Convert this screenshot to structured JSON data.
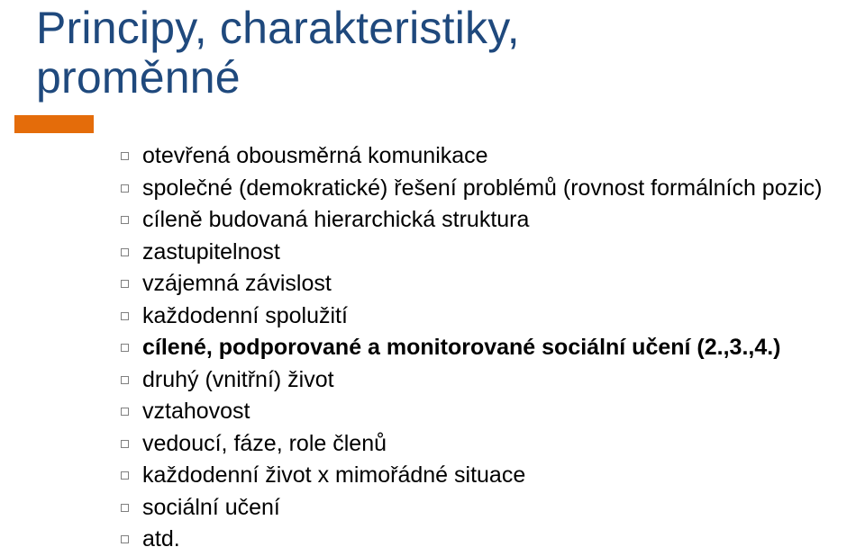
{
  "colors": {
    "title": "#1f497d",
    "body": "#000000",
    "accent": "#e46c0a",
    "bullet_border": "#808080",
    "background": "#ffffff"
  },
  "title": {
    "line1": "Principy, charakteristiky,",
    "line2": "proměnné"
  },
  "items": [
    {
      "text": "otevřená obousměrná komunikace",
      "bold": false
    },
    {
      "text": "společné (demokratické) řešení problémů (rovnost formálních pozic)",
      "bold": false
    },
    {
      "text": "cíleně budovaná hierarchická struktura",
      "bold": false
    },
    {
      "text": "zastupitelnost",
      "bold": false
    },
    {
      "text": "vzájemná závislost",
      "bold": false
    },
    {
      "text": "každodenní spolužití",
      "bold": false
    },
    {
      "text": "cílené, podporované a monitorované sociální učení (2.,3.,4.)",
      "bold": true
    },
    {
      "text": "druhý (vnitřní) život",
      "bold": false
    },
    {
      "text": "vztahovost",
      "bold": false
    },
    {
      "text": "vedoucí, fáze, role členů",
      "bold": false
    },
    {
      "text": "každodenní život x mimořádné situace",
      "bold": false
    },
    {
      "text": "sociální učení",
      "bold": false
    },
    {
      "text": "atd.",
      "bold": false
    }
  ]
}
